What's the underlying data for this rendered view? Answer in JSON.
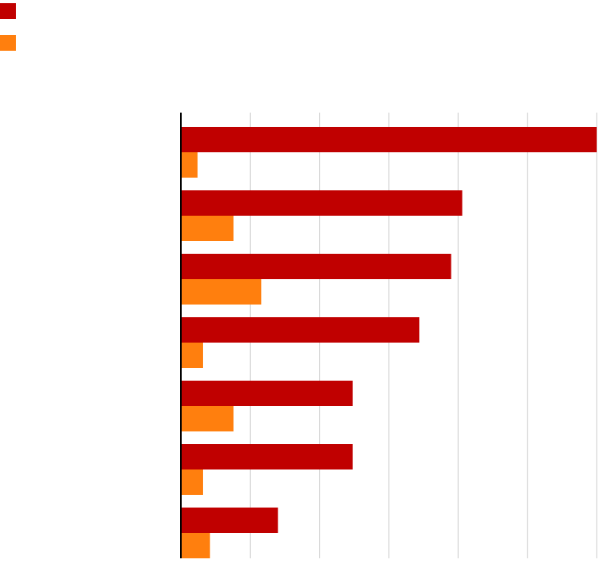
{
  "chart_data": {
    "type": "bar",
    "orientation": "horizontal",
    "categories": [
      "",
      "",
      "",
      "",
      "",
      "",
      ""
    ],
    "series": [
      {
        "color": "#c00000",
        "values": [
          30,
          20.3,
          19.5,
          17.2,
          12.4,
          12.4,
          7.0
        ]
      },
      {
        "color": "#ff7f0e",
        "values": [
          1.2,
          3.8,
          5.8,
          1.6,
          3.8,
          1.6,
          2.1
        ]
      }
    ],
    "xlim": [
      0,
      30
    ],
    "grid": true,
    "legend_position": "top-left"
  }
}
